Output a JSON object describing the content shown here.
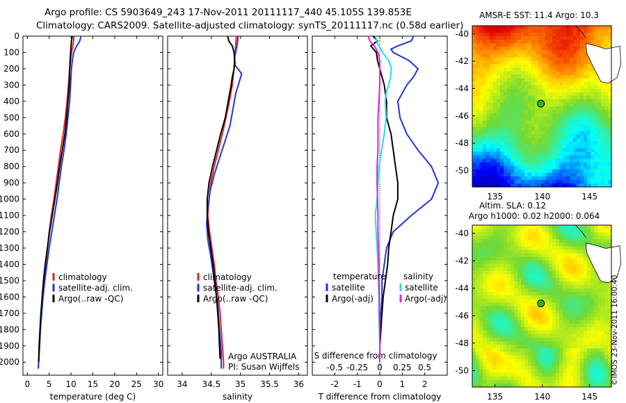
{
  "header": {
    "line1": "Argo profile: CS 5903649_243 17-Nov-2011 20111117_440 45.105S 139.853E",
    "line2": "Climatology: CARS2009. Satellite-adjusted climatology: synTS_20111117.nc (0.58d earlier)"
  },
  "watermark": "©IMOS 23-Nov-2011 16:00:40",
  "colors": {
    "climatology": "#e8201a",
    "satellite": "#1f35d6",
    "argo": "#000000",
    "sat_salinity": "#22dde8",
    "argo_salinity": "#e020d8",
    "station_marker": "#2bb52b"
  },
  "chart_data": [
    {
      "type": "line",
      "id": "temperature",
      "xlabel": "temperature (deg C)",
      "ylim": [
        2080,
        0
      ],
      "xlim": [
        -1,
        31
      ],
      "xticks": [
        0,
        5,
        10,
        15,
        20,
        25,
        30
      ],
      "yticks": [
        0,
        100,
        200,
        300,
        400,
        500,
        600,
        700,
        800,
        900,
        1000,
        1100,
        1200,
        1300,
        1400,
        1500,
        1600,
        1700,
        1800,
        1900,
        2000
      ],
      "legend": [
        "climatology",
        "satellite-adj. clim.",
        "Argo(..raw -QC)"
      ],
      "series": [
        {
          "key": "climatology",
          "depth": [
            0,
            50,
            100,
            200,
            300,
            400,
            500,
            600,
            700,
            800,
            900,
            1000,
            1100,
            1200,
            1300,
            1400,
            1500,
            1600,
            1700,
            1800,
            1900,
            2000,
            2040
          ],
          "values": [
            10.7,
            10.5,
            10.1,
            9.7,
            9.4,
            9.1,
            8.7,
            8.2,
            7.6,
            7.1,
            6.6,
            6.1,
            5.5,
            5.0,
            4.6,
            4.2,
            3.8,
            3.5,
            3.2,
            3.0,
            2.8,
            2.6,
            2.5
          ]
        },
        {
          "key": "satellite",
          "depth": [
            0,
            30,
            60,
            100,
            150,
            200,
            300,
            400,
            500,
            600,
            700,
            800,
            900,
            1000,
            1100,
            1200,
            1300,
            1400,
            1500,
            1600,
            1700,
            1800,
            1900,
            2000,
            2040
          ],
          "values": [
            12.3,
            12.0,
            11.3,
            10.6,
            10.3,
            10.1,
            9.9,
            9.7,
            9.3,
            8.9,
            8.4,
            7.8,
            7.3,
            6.8,
            6.2,
            5.6,
            5.0,
            4.5,
            4.0,
            3.6,
            3.3,
            3.0,
            2.8,
            2.6,
            2.5
          ]
        },
        {
          "key": "argo",
          "depth": [
            0,
            30,
            60,
            100,
            150,
            200,
            300,
            400,
            500,
            600,
            700,
            800,
            900,
            1000,
            1100,
            1200,
            1300,
            1400,
            1500,
            1600,
            1700,
            1800,
            1900,
            2000
          ],
          "values": [
            10.3,
            10.1,
            10.0,
            9.9,
            9.8,
            9.7,
            9.6,
            9.3,
            9.0,
            8.6,
            8.0,
            7.4,
            6.9,
            6.3,
            5.7,
            5.1,
            4.6,
            4.1,
            3.7,
            3.4,
            3.1,
            2.9,
            2.7,
            2.6
          ]
        }
      ]
    },
    {
      "type": "line",
      "id": "salinity",
      "xlabel": "salinity",
      "ylim": [
        2080,
        0
      ],
      "xlim": [
        33.75,
        36.15
      ],
      "xticks": [
        34,
        34.5,
        35,
        35.5,
        36
      ],
      "legend": [
        "climatology",
        "satellite-adj. clim.",
        "Argo(..raw -QC)"
      ],
      "annotation": [
        "Argo AUSTRALIA",
        "PI: Susan Wijffels"
      ],
      "series": [
        {
          "key": "climatology",
          "depth": [
            0,
            100,
            200,
            300,
            400,
            500,
            600,
            700,
            800,
            900,
            1000,
            1100,
            1200,
            1300,
            1400,
            1500,
            1600,
            1700,
            1800,
            1900,
            2000,
            2040
          ],
          "values": [
            34.93,
            34.91,
            34.89,
            34.86,
            34.81,
            34.75,
            34.69,
            34.62,
            34.55,
            34.49,
            34.46,
            34.44,
            34.47,
            34.51,
            34.55,
            34.58,
            34.62,
            34.65,
            34.67,
            34.69,
            34.71,
            34.71
          ]
        },
        {
          "key": "satellite",
          "depth": [
            0,
            40,
            80,
            130,
            180,
            230,
            280,
            350,
            450,
            550,
            650,
            750,
            850,
            950,
            1050,
            1150,
            1250,
            1350,
            1450,
            1550,
            1650,
            1750,
            1850,
            1950,
            2040
          ],
          "values": [
            34.96,
            34.95,
            34.93,
            34.9,
            34.91,
            35.02,
            34.98,
            34.92,
            34.87,
            34.82,
            34.73,
            34.64,
            34.55,
            34.48,
            34.44,
            34.42,
            34.44,
            34.49,
            34.53,
            34.57,
            34.61,
            34.63,
            34.65,
            34.67,
            34.67
          ]
        },
        {
          "key": "argo",
          "depth": [
            0,
            30,
            60,
            100,
            150,
            200,
            250,
            300,
            400,
            500,
            600,
            700,
            800,
            900,
            1000,
            1100,
            1200,
            1300,
            1400,
            1500,
            1600,
            1700,
            1800,
            1900,
            1980
          ],
          "values": [
            34.78,
            34.8,
            34.86,
            34.89,
            34.9,
            34.89,
            34.86,
            34.84,
            34.79,
            34.74,
            34.66,
            34.59,
            34.52,
            34.46,
            34.43,
            34.43,
            34.45,
            34.49,
            34.53,
            34.56,
            34.59,
            34.61,
            34.63,
            34.64,
            34.65
          ]
        }
      ]
    },
    {
      "type": "line",
      "id": "difference",
      "xlabel": "T difference from climatology",
      "xlabel2": "S difference from climatology",
      "ylim": [
        2080,
        0
      ],
      "xlim": [
        -3,
        3
      ],
      "xticks": [
        -2,
        -1,
        0,
        1,
        2
      ],
      "xticks_s": [
        -0.5,
        -0.25,
        0,
        0.25,
        0.5
      ],
      "xticklabels_s": [
        "-0.5",
        "-0.25",
        "0",
        "0.25",
        "0.5"
      ],
      "legend_titles": [
        "temperature",
        "salinity"
      ],
      "legend_t": [
        "satellite",
        "Argo(-adj)"
      ],
      "legend_s": [
        "satellite",
        "Argo(-adj)"
      ],
      "series": [
        {
          "key": "t_satellite",
          "depth": [
            0,
            30,
            60,
            80,
            100,
            150,
            200,
            250,
            300,
            400,
            500,
            600,
            700,
            800,
            900,
            1000,
            1100,
            1200,
            1300,
            1400,
            1500,
            1600,
            1700,
            1800,
            1900,
            2000
          ],
          "values": [
            1.5,
            1.4,
            0.8,
            0.5,
            0.6,
            1.3,
            1.7,
            1.5,
            1.2,
            0.8,
            0.9,
            1.2,
            1.7,
            2.3,
            2.6,
            2.3,
            1.4,
            0.6,
            0.3,
            0.2,
            0.1,
            0.1,
            0.05,
            0.05,
            0.0,
            0.0
          ]
        },
        {
          "key": "t_argo",
          "depth": [
            0,
            30,
            60,
            100,
            150,
            200,
            300,
            400,
            500,
            600,
            700,
            800,
            900,
            1000,
            1100,
            1200,
            1300,
            1400,
            1500,
            1600,
            1700,
            1800,
            1900,
            2000
          ],
          "values": [
            -0.3,
            -0.1,
            -0.4,
            -0.15,
            -0.1,
            0.0,
            0.2,
            0.3,
            0.3,
            0.5,
            0.6,
            0.7,
            0.8,
            0.8,
            0.6,
            0.5,
            0.4,
            0.35,
            0.25,
            0.15,
            0.1,
            0.05,
            0.0,
            0.0
          ]
        },
        {
          "key": "s_satellite",
          "depth": [
            0,
            50,
            100,
            150,
            200,
            250,
            300,
            350,
            400,
            500,
            600,
            700,
            800,
            900,
            1000,
            1100,
            1200,
            1300,
            1400,
            1500,
            1600,
            1700,
            1800,
            1900,
            2000
          ],
          "values": [
            -0.05,
            -0.02,
            0.03,
            0.1,
            0.13,
            0.12,
            0.1,
            0.07,
            0.06,
            0.07,
            0.05,
            0.02,
            -0.01,
            -0.02,
            -0.03,
            -0.05,
            -0.04,
            -0.03,
            -0.02,
            -0.015,
            -0.01,
            -0.01,
            -0.005,
            0.0,
            0.0
          ]
        },
        {
          "key": "s_argo",
          "depth": [
            0,
            30,
            60,
            100,
            150,
            200,
            300,
            400,
            500,
            600,
            700,
            800,
            900,
            1000,
            1100,
            1200,
            1300,
            1400,
            1500,
            1600,
            1700,
            1800,
            1900,
            2000
          ],
          "values": [
            -0.13,
            -0.11,
            -0.06,
            -0.02,
            0.0,
            0.0,
            0.0,
            -0.01,
            -0.02,
            -0.02,
            -0.02,
            -0.03,
            -0.03,
            -0.025,
            -0.02,
            -0.02,
            -0.015,
            -0.01,
            -0.01,
            -0.005,
            -0.005,
            0.0,
            0.0,
            0.0
          ]
        }
      ]
    },
    {
      "type": "heatmap",
      "id": "sst_map",
      "title": "AMSR-E SST: 11.4  Argo: 10.3",
      "xlim": [
        132.6,
        147.3
      ],
      "ylim": [
        -51.2,
        -39.4
      ],
      "xticks": [
        135,
        140,
        145
      ],
      "yticks": [
        -40,
        -42,
        -44,
        -46,
        -48,
        -50
      ],
      "station": {
        "lon": 139.853,
        "lat": -45.105
      }
    },
    {
      "type": "heatmap",
      "id": "sla_map",
      "title_line1": "Altim. SLA: 0.12",
      "title_line2": "Argo h1000: 0.02 h2000: 0.064",
      "xlim": [
        132.6,
        147.3
      ],
      "ylim": [
        -51.2,
        -39.4
      ],
      "xticks": [
        135,
        140,
        145
      ],
      "yticks": [
        -40,
        -42,
        -44,
        -46,
        -48,
        -50
      ],
      "station": {
        "lon": 139.853,
        "lat": -45.105
      }
    }
  ]
}
